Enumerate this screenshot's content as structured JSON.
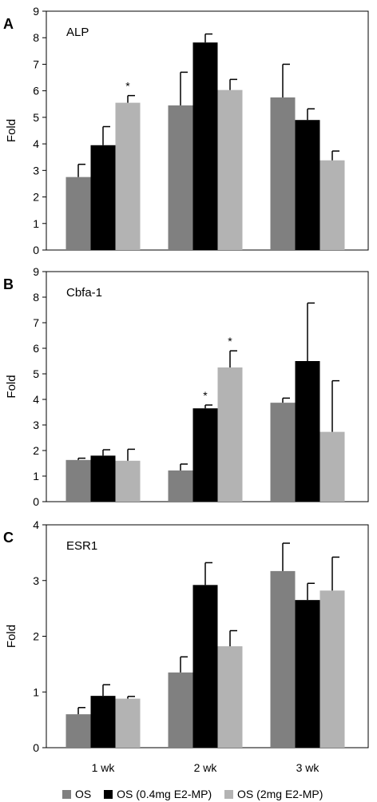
{
  "colors": {
    "s0": "#808080",
    "s1": "#000000",
    "s2": "#b3b3b3",
    "axis": "#000000",
    "errbar": "#000000"
  },
  "chart_data": [
    {
      "type": "bar",
      "panel_letter": "A",
      "title": "ALP",
      "ylabel": "Fold",
      "ylim": [
        0,
        9
      ],
      "yticks": [
        "0",
        "1",
        "2",
        "3",
        "4",
        "5",
        "6",
        "7",
        "8",
        "9"
      ],
      "categories": [
        "",
        "",
        ""
      ],
      "series": [
        {
          "values": [
            2.75,
            5.45,
            5.75
          ],
          "errors": [
            0.48,
            1.25,
            1.25
          ],
          "significant": [
            false,
            false,
            false
          ]
        },
        {
          "values": [
            3.95,
            7.82,
            4.9
          ],
          "errors": [
            0.7,
            0.32,
            0.42
          ],
          "significant": [
            false,
            false,
            false
          ]
        },
        {
          "values": [
            5.55,
            6.03,
            3.38
          ],
          "errors": [
            0.27,
            0.4,
            0.35
          ],
          "significant": [
            true,
            false,
            false
          ]
        }
      ],
      "grid": false
    },
    {
      "type": "bar",
      "panel_letter": "B",
      "title": "Cbfa-1",
      "ylabel": "Fold",
      "ylim": [
        0,
        9
      ],
      "yticks": [
        "0",
        "1",
        "2",
        "3",
        "4",
        "5",
        "6",
        "7",
        "8",
        "9"
      ],
      "categories": [
        "",
        "",
        ""
      ],
      "series": [
        {
          "values": [
            1.63,
            1.22,
            3.87
          ],
          "errors": [
            0.07,
            0.25,
            0.18
          ],
          "significant": [
            false,
            false,
            false
          ]
        },
        {
          "values": [
            1.8,
            3.65,
            5.5
          ],
          "errors": [
            0.23,
            0.13,
            2.27
          ],
          "significant": [
            false,
            true,
            false
          ]
        },
        {
          "values": [
            1.6,
            5.25,
            2.73
          ],
          "errors": [
            0.45,
            0.65,
            2.0
          ],
          "significant": [
            false,
            true,
            false
          ]
        }
      ],
      "grid": false
    },
    {
      "type": "bar",
      "panel_letter": "C",
      "title": "ESR1",
      "ylabel": "Fold",
      "ylim": [
        0,
        4
      ],
      "yticks": [
        "0",
        "1",
        "2",
        "3",
        "4"
      ],
      "categories": [
        "1 wk",
        "2 wk",
        "3 wk"
      ],
      "series": [
        {
          "values": [
            0.6,
            1.35,
            3.17
          ],
          "errors": [
            0.12,
            0.28,
            0.5
          ],
          "significant": [
            false,
            false,
            false
          ]
        },
        {
          "values": [
            0.93,
            2.92,
            2.65
          ],
          "errors": [
            0.2,
            0.4,
            0.3
          ],
          "significant": [
            false,
            false,
            false
          ]
        },
        {
          "values": [
            0.88,
            1.82,
            2.82
          ],
          "errors": [
            0.04,
            0.28,
            0.6
          ],
          "significant": [
            false,
            false,
            false
          ]
        }
      ],
      "grid": false
    }
  ],
  "legend": {
    "position": "bottom",
    "items": [
      {
        "label": "OS",
        "color": "#808080"
      },
      {
        "label": "OS (0.4mg E2-MP)",
        "color": "#000000"
      },
      {
        "label": "OS (2mg E2-MP)",
        "color": "#b3b3b3"
      }
    ]
  },
  "significance_marker": "*"
}
